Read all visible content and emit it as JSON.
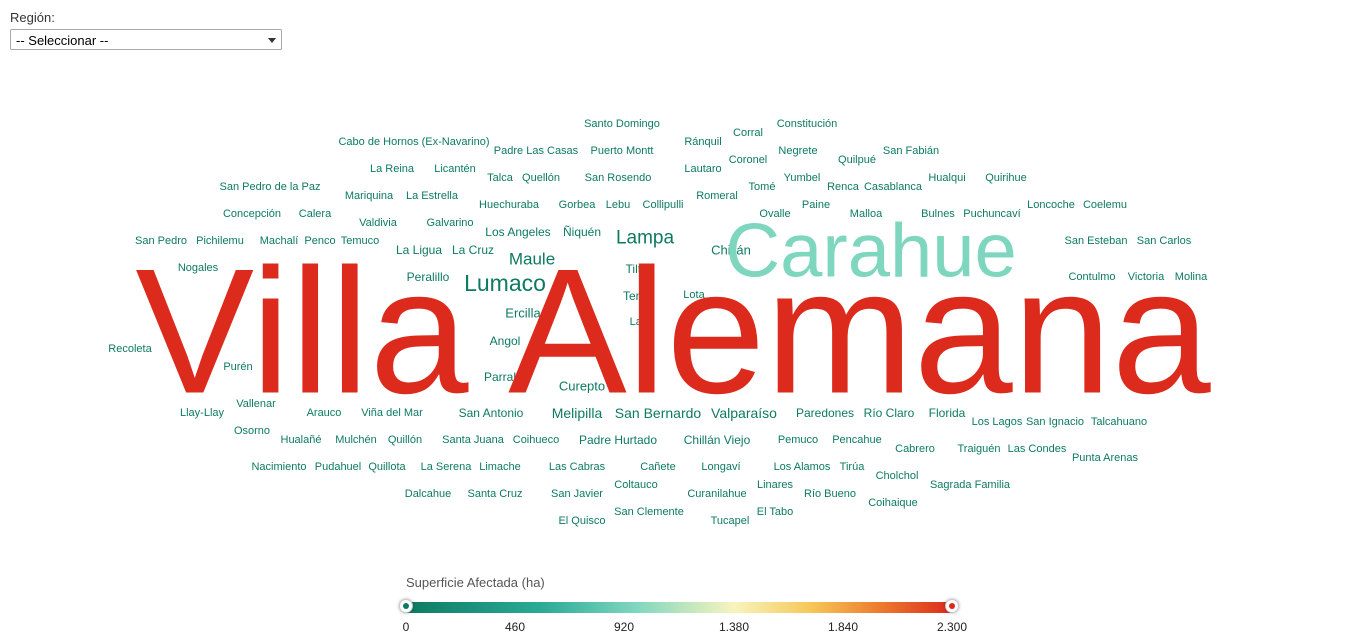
{
  "filter": {
    "label": "Región:",
    "selected": "-- Seleccionar --"
  },
  "chart_data": {
    "type": "wordcloud",
    "value_label": "Superficie Afectada (ha)",
    "value_range": [
      0,
      2300
    ],
    "colors": {
      "low": "#0d7a62",
      "mid": "#7fd6bf",
      "high": "#dc2a1c"
    },
    "words": [
      {
        "text": "Villa Alemana",
        "value": 2300
      },
      {
        "text": "Carahue",
        "value": 1000
      },
      {
        "text": "Lumaco",
        "value": 200
      },
      {
        "text": "Lampa",
        "value": 180
      },
      {
        "text": "Maule",
        "value": 160
      },
      {
        "text": "San Bernardo",
        "value": 120
      },
      {
        "text": "Melipilla",
        "value": 110
      },
      {
        "text": "Valparaíso",
        "value": 110
      },
      {
        "text": "Curepto",
        "value": 100
      },
      {
        "text": "Ercilla",
        "value": 100
      },
      {
        "text": "Chillán",
        "value": 100
      },
      {
        "text": "Paredones",
        "value": 90
      },
      {
        "text": "Los Angeles",
        "value": 90
      },
      {
        "text": "Ñiquén",
        "value": 90
      },
      {
        "text": "San Antonio",
        "value": 90
      },
      {
        "text": "Angol",
        "value": 80
      },
      {
        "text": "Tiltil",
        "value": 80
      },
      {
        "text": "Teno",
        "value": 80
      },
      {
        "text": "Río Claro",
        "value": 80
      },
      {
        "text": "Florida",
        "value": 80
      },
      {
        "text": "Chillán Viejo",
        "value": 80
      },
      {
        "text": "Padre Hurtado",
        "value": 80
      },
      {
        "text": "Parral",
        "value": 70
      },
      {
        "text": "Peralillo",
        "value": 70
      },
      {
        "text": "La Ligua",
        "value": 70
      },
      {
        "text": "La Cruz",
        "value": 70
      },
      {
        "text": "Santo Domingo",
        "value": 50
      },
      {
        "text": "Corral",
        "value": 50
      },
      {
        "text": "Constitución",
        "value": 50
      },
      {
        "text": "Cabo de Hornos (Ex-Navarino)",
        "value": 50
      },
      {
        "text": "Ránquil",
        "value": 50
      },
      {
        "text": "Padre Las Casas",
        "value": 50
      },
      {
        "text": "Puerto Montt",
        "value": 50
      },
      {
        "text": "Negrete",
        "value": 50
      },
      {
        "text": "San Fabián",
        "value": 50
      },
      {
        "text": "Coronel",
        "value": 50
      },
      {
        "text": "Quilpué",
        "value": 50
      },
      {
        "text": "La Reina",
        "value": 50
      },
      {
        "text": "Licantén",
        "value": 50
      },
      {
        "text": "Lautaro",
        "value": 50
      },
      {
        "text": "Talca",
        "value": 50
      },
      {
        "text": "Quellón",
        "value": 50
      },
      {
        "text": "San Rosendo",
        "value": 50
      },
      {
        "text": "Yumbel",
        "value": 50
      },
      {
        "text": "Hualqui",
        "value": 50
      },
      {
        "text": "Quirihue",
        "value": 50
      },
      {
        "text": "San Pedro de la Paz",
        "value": 50
      },
      {
        "text": "Tomé",
        "value": 50
      },
      {
        "text": "Renca",
        "value": 50
      },
      {
        "text": "Casablanca",
        "value": 50
      },
      {
        "text": "Mariquina",
        "value": 50
      },
      {
        "text": "La Estrella",
        "value": 50
      },
      {
        "text": "Romeral",
        "value": 50
      },
      {
        "text": "Huechuraba",
        "value": 50
      },
      {
        "text": "Gorbea",
        "value": 50
      },
      {
        "text": "Lebu",
        "value": 50
      },
      {
        "text": "Collipulli",
        "value": 50
      },
      {
        "text": "Paine",
        "value": 50
      },
      {
        "text": "Loncoche",
        "value": 50
      },
      {
        "text": "Coelemu",
        "value": 50
      },
      {
        "text": "Concepción",
        "value": 50
      },
      {
        "text": "Calera",
        "value": 50
      },
      {
        "text": "Ovalle",
        "value": 50
      },
      {
        "text": "Malloa",
        "value": 50
      },
      {
        "text": "Bulnes",
        "value": 50
      },
      {
        "text": "Puchuncaví",
        "value": 50
      },
      {
        "text": "Valdivia",
        "value": 50
      },
      {
        "text": "Galvarino",
        "value": 50
      },
      {
        "text": "San Pedro",
        "value": 50
      },
      {
        "text": "Pichilemu",
        "value": 50
      },
      {
        "text": "Machalí",
        "value": 50
      },
      {
        "text": "Penco",
        "value": 50
      },
      {
        "text": "Temuco",
        "value": 50
      },
      {
        "text": "San Esteban",
        "value": 50
      },
      {
        "text": "San Carlos",
        "value": 50
      },
      {
        "text": "Nogales",
        "value": 50
      },
      {
        "text": "Contulmo",
        "value": 50
      },
      {
        "text": "Victoria",
        "value": 50
      },
      {
        "text": "Molina",
        "value": 50
      },
      {
        "text": "Lota",
        "value": 50
      },
      {
        "text": "Laja",
        "value": 50
      },
      {
        "text": "Recoleta",
        "value": 50
      },
      {
        "text": "Purén",
        "value": 50
      },
      {
        "text": "Vallenar",
        "value": 50
      },
      {
        "text": "Llay-Llay",
        "value": 50
      },
      {
        "text": "Arauco",
        "value": 50
      },
      {
        "text": "Viña del Mar",
        "value": 50
      },
      {
        "text": "Los Lagos",
        "value": 50
      },
      {
        "text": "San Ignacio",
        "value": 50
      },
      {
        "text": "Talcahuano",
        "value": 50
      },
      {
        "text": "Osorno",
        "value": 50
      },
      {
        "text": "Hualañé",
        "value": 50
      },
      {
        "text": "Mulchén",
        "value": 50
      },
      {
        "text": "Quillón",
        "value": 50
      },
      {
        "text": "Santa Juana",
        "value": 50
      },
      {
        "text": "Coihueco",
        "value": 50
      },
      {
        "text": "Pemuco",
        "value": 50
      },
      {
        "text": "Pencahue",
        "value": 50
      },
      {
        "text": "Cabrero",
        "value": 50
      },
      {
        "text": "Traiguén",
        "value": 50
      },
      {
        "text": "Las Condes",
        "value": 50
      },
      {
        "text": "Punta Arenas",
        "value": 50
      },
      {
        "text": "Nacimiento",
        "value": 50
      },
      {
        "text": "Pudahuel",
        "value": 50
      },
      {
        "text": "Quillota",
        "value": 50
      },
      {
        "text": "La Serena",
        "value": 50
      },
      {
        "text": "Limache",
        "value": 50
      },
      {
        "text": "Las Cabras",
        "value": 50
      },
      {
        "text": "Cañete",
        "value": 50
      },
      {
        "text": "Longaví",
        "value": 50
      },
      {
        "text": "Los Alamos",
        "value": 50
      },
      {
        "text": "Tirúa",
        "value": 50
      },
      {
        "text": "Cholchol",
        "value": 50
      },
      {
        "text": "Coltauco",
        "value": 50
      },
      {
        "text": "Linares",
        "value": 50
      },
      {
        "text": "Sagrada Familia",
        "value": 50
      },
      {
        "text": "Dalcahue",
        "value": 50
      },
      {
        "text": "Santa Cruz",
        "value": 50
      },
      {
        "text": "San Javier",
        "value": 50
      },
      {
        "text": "Curanilahue",
        "value": 50
      },
      {
        "text": "Río Bueno",
        "value": 50
      },
      {
        "text": "Coihaique",
        "value": 50
      },
      {
        "text": "San Clemente",
        "value": 50
      },
      {
        "text": "El Tabo",
        "value": 50
      },
      {
        "text": "El Quisco",
        "value": 50
      },
      {
        "text": "Tucapel",
        "value": 50
      }
    ]
  },
  "legend": {
    "title": "Superficie Afectada (ha)",
    "min": 0,
    "max": 2300,
    "ticks": [
      "0",
      "460",
      "920",
      "1.380",
      "1.840",
      "2.300"
    ]
  }
}
